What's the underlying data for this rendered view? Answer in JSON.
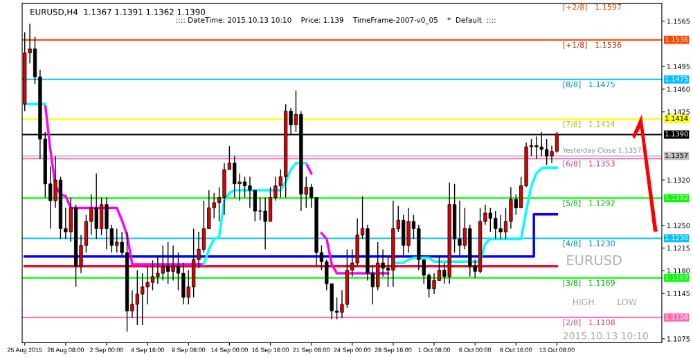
{
  "chart_data": {
    "type": "candlestick",
    "title": "EURUSD,H4  1.1367 1.1391 1.1362 1.1390",
    "subtitle": ":::: DateTime: 2015.10.13 10:10    Price: 1.139    TimeFrame-2007-v0_05    *  Default  ::::",
    "categories": [
      "25 Aug 2015",
      null,
      null,
      null,
      null,
      null,
      null,
      null,
      "28 Aug 08:00",
      null,
      null,
      null,
      null,
      null,
      null,
      null,
      "2 Sep 00:00",
      null,
      null,
      null,
      null,
      null,
      null,
      null,
      "4 Sep 16:00",
      null,
      null,
      null,
      null,
      null,
      null,
      null,
      "9 Sep 08:00",
      null,
      null,
      null,
      null,
      null,
      null,
      null,
      "14 Sep 00:00",
      null,
      null,
      null,
      null,
      null,
      null,
      null,
      "16 Sep 16:00",
      null,
      null,
      null,
      null,
      null,
      null,
      null,
      "21 Sep 08:00",
      null,
      null,
      null,
      null,
      null,
      null,
      null,
      "24 Sep 00:00",
      null,
      null,
      null,
      null,
      null,
      null,
      null,
      "28 Sep 16:00",
      null,
      null,
      null,
      null,
      null,
      null,
      null,
      "1 Oct 08:00",
      null,
      null,
      null,
      null,
      null,
      null,
      null,
      "6 Oct 00:00",
      null,
      null,
      null,
      null,
      null,
      null,
      null,
      "8 Oct 16:00",
      null,
      null,
      null,
      null,
      null,
      null,
      null,
      "13 Oct 08:00"
    ],
    "ohlc": [
      [
        1.1437,
        1.1548,
        1.1426,
        1.1516
      ],
      [
        1.1516,
        1.1561,
        1.15,
        1.1522
      ],
      [
        1.1522,
        1.1541,
        1.1468,
        1.1479
      ],
      [
        1.1479,
        1.149,
        1.1352,
        1.1383
      ],
      [
        1.1383,
        1.1394,
        1.1293,
        1.1314
      ],
      [
        1.1314,
        1.1341,
        1.1245,
        1.1288
      ],
      [
        1.1288,
        1.1357,
        1.1277,
        1.132
      ],
      [
        1.132,
        1.1325,
        1.1229,
        1.1245
      ],
      [
        1.1245,
        1.1277,
        1.1229,
        1.124
      ],
      [
        1.124,
        1.1293,
        1.1224,
        1.1277
      ],
      [
        1.1277,
        1.1282,
        1.1155,
        1.1187
      ],
      [
        1.1187,
        1.1235,
        1.1176,
        1.1219
      ],
      [
        1.1219,
        1.1266,
        1.1208,
        1.1256
      ],
      [
        1.1256,
        1.1298,
        1.1235,
        1.1277
      ],
      [
        1.1277,
        1.133,
        1.1229,
        1.1245
      ],
      [
        1.1245,
        1.1293,
        1.1235,
        1.1282
      ],
      [
        1.1282,
        1.1293,
        1.1213,
        1.1245
      ],
      [
        1.1245,
        1.1251,
        1.1208,
        1.1219
      ],
      [
        1.1219,
        1.1245,
        1.1208,
        1.1224
      ],
      [
        1.1224,
        1.124,
        1.1203,
        1.1208
      ],
      [
        1.1208,
        1.124,
        1.1086,
        1.1118
      ],
      [
        1.1118,
        1.115,
        1.1107,
        1.1128
      ],
      [
        1.1128,
        1.1181,
        1.1096,
        1.1144
      ],
      [
        1.1144,
        1.1176,
        1.1096,
        1.1155
      ],
      [
        1.1155,
        1.1187,
        1.1128,
        1.1162
      ],
      [
        1.1162,
        1.1196,
        1.115,
        1.1171
      ],
      [
        1.1171,
        1.1203,
        1.116,
        1.1176
      ],
      [
        1.1176,
        1.1219,
        1.1165,
        1.1187
      ],
      [
        1.1187,
        1.1224,
        1.116,
        1.1179
      ],
      [
        1.1179,
        1.1219,
        1.1165,
        1.1187
      ],
      [
        1.1187,
        1.1208,
        1.115,
        1.1176
      ],
      [
        1.1176,
        1.1192,
        1.1128,
        1.1139
      ],
      [
        1.1139,
        1.1181,
        1.1128,
        1.1155
      ],
      [
        1.1155,
        1.1245,
        1.1139,
        1.1197
      ],
      [
        1.1197,
        1.124,
        1.1184,
        1.1213
      ],
      [
        1.1213,
        1.1288,
        1.1208,
        1.1245
      ],
      [
        1.1245,
        1.1304,
        1.1245,
        1.1277
      ],
      [
        1.1277,
        1.13,
        1.1261,
        1.1285
      ],
      [
        1.1285,
        1.1309,
        1.1256,
        1.1293
      ],
      [
        1.1293,
        1.1346,
        1.1266,
        1.1336
      ],
      [
        1.1336,
        1.1372,
        1.1336,
        1.1346
      ],
      [
        1.1346,
        1.1357,
        1.1293,
        1.1314
      ],
      [
        1.1314,
        1.133,
        1.1288,
        1.1317
      ],
      [
        1.1317,
        1.1325,
        1.1293,
        1.1311
      ],
      [
        1.1311,
        1.1325,
        1.1277,
        1.1304
      ],
      [
        1.1304,
        1.1304,
        1.1256,
        1.1272
      ],
      [
        1.1272,
        1.1293,
        1.1258,
        1.1272
      ],
      [
        1.1272,
        1.1293,
        1.1213,
        1.1256
      ],
      [
        1.1256,
        1.1309,
        1.1256,
        1.1293
      ],
      [
        1.1293,
        1.1325,
        1.1288,
        1.1311
      ],
      [
        1.1311,
        1.1336,
        1.1293,
        1.1325
      ],
      [
        1.1325,
        1.1437,
        1.1293,
        1.1426
      ],
      [
        1.1426,
        1.1431,
        1.1389,
        1.1405
      ],
      [
        1.1405,
        1.1458,
        1.1394,
        1.1421
      ],
      [
        1.1421,
        1.1426,
        1.1272,
        1.1298
      ],
      [
        1.1298,
        1.1325,
        1.1277,
        1.1309
      ],
      [
        1.1309,
        1.1314,
        1.1277,
        1.1293
      ],
      [
        1.1293,
        1.1293,
        1.1187,
        1.1208
      ],
      [
        1.1208,
        1.1219,
        1.1181,
        1.1194
      ],
      [
        1.1194,
        1.1197,
        1.115,
        1.116
      ],
      [
        1.116,
        1.116,
        1.1105,
        1.1118
      ],
      [
        1.1118,
        1.1139,
        1.1105,
        1.1116
      ],
      [
        1.1116,
        1.115,
        1.1107,
        1.1128
      ],
      [
        1.1128,
        1.1213,
        1.1123,
        1.1181
      ],
      [
        1.1181,
        1.1213,
        1.1171,
        1.1192
      ],
      [
        1.1192,
        1.1261,
        1.1187,
        1.1235
      ],
      [
        1.1235,
        1.1295,
        1.1229,
        1.1245
      ],
      [
        1.1245,
        1.1251,
        1.1165,
        1.1176
      ],
      [
        1.1176,
        1.1187,
        1.1128,
        1.1155
      ],
      [
        1.1155,
        1.1224,
        1.115,
        1.1192
      ],
      [
        1.1192,
        1.1213,
        1.1171,
        1.1184
      ],
      [
        1.1184,
        1.1203,
        1.1155,
        1.1181
      ],
      [
        1.1181,
        1.1288,
        1.1155,
        1.1245
      ],
      [
        1.1245,
        1.128,
        1.124,
        1.1258
      ],
      [
        1.1258,
        1.1266,
        1.1203,
        1.1219
      ],
      [
        1.1219,
        1.1277,
        1.1208,
        1.1256
      ],
      [
        1.1256,
        1.1266,
        1.1229,
        1.1245
      ],
      [
        1.1245,
        1.1251,
        1.1181,
        1.1197
      ],
      [
        1.1197,
        1.1197,
        1.116,
        1.1173
      ],
      [
        1.1173,
        1.1176,
        1.1139,
        1.1152
      ],
      [
        1.1152,
        1.1176,
        1.1144,
        1.1165
      ],
      [
        1.1165,
        1.1203,
        1.1165,
        1.1181
      ],
      [
        1.1181,
        1.1192,
        1.116,
        1.1171
      ],
      [
        1.1171,
        1.1316,
        1.116,
        1.1282
      ],
      [
        1.1282,
        1.1314,
        1.1208,
        1.1229
      ],
      [
        1.1229,
        1.1288,
        1.1203,
        1.1219
      ],
      [
        1.1219,
        1.1277,
        1.1213,
        1.1245
      ],
      [
        1.1245,
        1.1251,
        1.1171,
        1.1187
      ],
      [
        1.1187,
        1.1197,
        1.1169,
        1.1179
      ],
      [
        1.1179,
        1.1277,
        1.1176,
        1.1256
      ],
      [
        1.1256,
        1.1282,
        1.1251,
        1.1269
      ],
      [
        1.1269,
        1.1277,
        1.124,
        1.1261
      ],
      [
        1.1261,
        1.1272,
        1.1229,
        1.1245
      ],
      [
        1.1245,
        1.1266,
        1.1229,
        1.124
      ],
      [
        1.124,
        1.1277,
        1.1229,
        1.1256
      ],
      [
        1.1256,
        1.1309,
        1.1245,
        1.129
      ],
      [
        1.129,
        1.1298,
        1.1266,
        1.1277
      ],
      [
        1.1277,
        1.1325,
        1.1277,
        1.1311
      ],
      [
        1.1311,
        1.1378,
        1.1309,
        1.1371
      ],
      [
        1.1371,
        1.1383,
        1.1357,
        1.1373
      ],
      [
        1.1373,
        1.1387,
        1.1352,
        1.1371
      ],
      [
        1.1371,
        1.1394,
        1.1357,
        1.1367
      ],
      [
        1.1367,
        1.1383,
        1.1343,
        1.1357
      ],
      [
        1.1357,
        1.1373,
        1.1346,
        1.1364
      ],
      [
        1.1364,
        1.1394,
        1.1362,
        1.1391
      ]
    ],
    "series": [
      {
        "type": "line",
        "color": "#00ffff",
        "values": [
          1.1437,
          1.1437,
          1.1437,
          1.1437,
          1.1437,
          null,
          null,
          null,
          null,
          null,
          null,
          null,
          null,
          null,
          null,
          null,
          null,
          null,
          null,
          null,
          null,
          null,
          null,
          null,
          null,
          null,
          null,
          null,
          null,
          null,
          null,
          null,
          null,
          null,
          null,
          1.119,
          1.1213,
          1.1229,
          1.1232,
          1.1288,
          1.13,
          1.1304,
          1.1304,
          1.1304,
          1.1304,
          1.1304,
          1.1304,
          1.1304,
          1.1304,
          1.1304,
          1.1304,
          1.1317,
          1.1336,
          1.1346,
          1.1346,
          1.1346,
          null,
          null,
          null,
          null,
          null,
          null,
          null,
          null,
          null,
          null,
          null,
          null,
          null,
          null,
          null,
          null,
          1.1192,
          1.1192,
          1.1192,
          1.1197,
          1.12,
          1.12,
          1.12,
          1.12,
          1.1194,
          1.1194,
          1.1194,
          1.1194,
          1.1194,
          1.1194,
          1.1194,
          1.1194,
          1.1194,
          1.1194,
          1.1222,
          1.1229,
          1.1229,
          1.1229,
          1.1229,
          1.1229,
          1.1229,
          1.1229,
          1.1272,
          1.1311,
          1.133,
          1.1338,
          1.1339,
          1.1339,
          1.1339
        ]
      },
      {
        "type": "line",
        "color": "#ff00ff",
        "values": [
          null,
          null,
          null,
          null,
          1.1437,
          1.1367,
          1.1311,
          1.1298,
          1.1295,
          1.1277,
          1.1277,
          1.1277,
          1.1277,
          1.1277,
          1.1277,
          1.1277,
          1.1277,
          1.1277,
          1.1277,
          1.1258,
          1.1235,
          1.119,
          1.119,
          1.119,
          1.119,
          1.119,
          1.119,
          1.119,
          1.119,
          1.119,
          1.119,
          1.119,
          1.119,
          1.119,
          1.119,
          1.119,
          null,
          null,
          null,
          null,
          null,
          null,
          null,
          null,
          null,
          null,
          null,
          null,
          null,
          null,
          null,
          null,
          null,
          null,
          null,
          1.1346,
          1.133,
          null,
          1.1238,
          1.1229,
          1.119,
          1.1176,
          1.1176,
          1.1176,
          1.1176,
          1.1176,
          1.1176,
          1.1176,
          1.1176,
          1.1176,
          1.1176,
          1.1176,
          null,
          null,
          null,
          null,
          null,
          null,
          null,
          null,
          null,
          null,
          null,
          null,
          null,
          null,
          null,
          null,
          null,
          null,
          null,
          null,
          null,
          null,
          null,
          null,
          null,
          null,
          null,
          null,
          null,
          null,
          null,
          null,
          null
        ]
      },
      {
        "type": "step",
        "color": "#0000ff",
        "values": [
          1.1202,
          1.1202,
          1.1202,
          1.1202,
          1.1202,
          1.1202,
          1.1202,
          1.1202,
          1.1202,
          1.1202,
          1.1202,
          1.1202,
          1.1202,
          1.1202,
          1.1202,
          1.1202,
          1.1202,
          1.1202,
          1.1202,
          1.1202,
          1.1202,
          1.1202,
          1.1202,
          1.1202,
          1.1202,
          1.1202,
          1.1202,
          1.1202,
          1.1202,
          1.1202,
          1.1202,
          1.1202,
          1.1202,
          1.1202,
          1.1202,
          1.1202,
          1.1202,
          1.1202,
          1.1202,
          1.1202,
          1.1202,
          1.1202,
          1.1202,
          1.1202,
          1.1202,
          1.1202,
          1.1202,
          1.1202,
          1.1202,
          1.1202,
          1.1202,
          1.1202,
          1.1202,
          1.1202,
          1.1202,
          1.1202,
          1.1202,
          1.1202,
          1.1202,
          1.1202,
          1.1202,
          1.1202,
          1.1202,
          1.1202,
          1.1202,
          1.1202,
          1.1202,
          1.1202,
          1.1202,
          1.1202,
          1.1202,
          1.1202,
          1.1202,
          1.1202,
          1.1202,
          1.1202,
          1.1202,
          1.1202,
          1.1202,
          1.1202,
          1.1202,
          1.1202,
          1.1202,
          1.1202,
          1.1202,
          1.1202,
          1.1202,
          1.1202,
          1.1202,
          1.1202,
          1.1202,
          1.1202,
          1.1202,
          1.1202,
          1.1202,
          1.1202,
          1.1202,
          1.1202,
          1.1202,
          1.1202,
          1.1267,
          1.1267,
          1.1267,
          1.1267,
          1.1267
        ]
      },
      {
        "type": "line",
        "color": "#dc143c",
        "values": [
          1.1187,
          1.1187,
          1.1187,
          1.1187,
          1.1187,
          1.1187,
          1.1187,
          1.1187,
          1.1187,
          1.1187,
          1.1187,
          1.1187,
          1.1187,
          1.1187,
          1.1187,
          1.1187,
          1.1187,
          1.1187,
          1.1187,
          1.1187,
          1.1187,
          1.1187,
          1.1187,
          1.1187,
          1.1187,
          1.1187,
          1.1187,
          1.1187,
          1.1187,
          1.1187,
          1.1187,
          1.1187,
          1.1187,
          1.1187,
          1.1187,
          1.1187,
          1.1187,
          1.1187,
          1.1187,
          1.1187,
          1.1187,
          1.1187,
          1.1187,
          1.1187,
          1.1187,
          1.1187,
          1.1187,
          1.1187,
          1.1187,
          1.1187,
          1.1187,
          1.1187,
          1.1187,
          1.1187,
          1.1187,
          1.1187,
          1.1187,
          1.1187,
          1.1187,
          1.1187,
          1.1187,
          1.1187,
          1.1187,
          1.1187,
          1.1187,
          1.1187,
          1.1187,
          1.1187,
          1.1187,
          1.1187,
          1.1187,
          1.1187,
          1.1187,
          1.1187,
          1.1187,
          1.1187,
          1.1187,
          1.1187,
          1.1187,
          1.1187,
          1.1187,
          1.1187,
          1.1187,
          1.1187,
          1.1187,
          1.1187,
          1.1187,
          1.1187,
          1.1187,
          1.1187,
          1.1187,
          1.1187,
          1.1187,
          1.1187,
          1.1187,
          1.1187,
          1.1187,
          1.1187,
          1.1187,
          1.1187,
          1.1187,
          1.1187,
          1.1187,
          1.1187,
          1.1187
        ]
      }
    ],
    "ylim": [
      1.1069,
      1.1592
    ],
    "yticks": [
      1.1565,
      1.1495,
      {
        "value": 1.146,
        "label": "1.1460"
      },
      1.1425,
      {
        "value": 1.132,
        "label": "1.1320"
      },
      {
        "value": 1.125,
        "label": "1.1250"
      },
      1.1215,
      {
        "value": 1.118,
        "label": "1.1180"
      },
      1.1145,
      1.1075
    ],
    "ref_lines": [
      {
        "axis": "y",
        "value": 1.1536,
        "label": "1.1536",
        "color": "#ff4500"
      },
      {
        "axis": "y",
        "value": 1.1475,
        "label": "1.1475",
        "color": "#00bfff"
      },
      {
        "axis": "y",
        "value": 1.1414,
        "label": "1.1414",
        "color": "#ffff00"
      },
      {
        "axis": "y",
        "value": 1.139,
        "label": "1.1390",
        "color": "#000000"
      },
      {
        "axis": "y",
        "value": 1.1357,
        "label": "1.1357",
        "color": "#c0c0c0"
      },
      {
        "axis": "y",
        "value": 1.1353,
        "color": "#ff69b4"
      },
      {
        "axis": "y",
        "value": 1.1292,
        "label": "1.1292",
        "color": "#00ff00"
      },
      {
        "axis": "y",
        "value": 1.123,
        "label": "1.1230",
        "color": "#00bfff"
      },
      {
        "axis": "y",
        "value": 1.1169,
        "label": "1.1169",
        "color": "#00ff00"
      },
      {
        "axis": "y",
        "value": 1.1108,
        "label": "1.1108",
        "color": "#ff69b4"
      }
    ],
    "annotations": [
      {
        "text": "[+1/8]   1.1536",
        "y": 1.1536
      },
      {
        "text": "[8/8]   1.1475",
        "y": 1.1475
      },
      {
        "text": "[7/8]   1.1414",
        "y": 1.1414
      },
      {
        "text": "Yesterday Close 1.1357",
        "y": 1.1357
      },
      {
        "text": "[6/8]   1.1353",
        "y": 1.1353
      },
      {
        "text": "[5/8]   1.1292",
        "y": 1.1292
      },
      {
        "text": "[4/8]   1.1230",
        "y": 1.123
      },
      {
        "text": "[3/8]   1.1169",
        "y": 1.1169
      },
      {
        "text": "[2/8]   1.1108",
        "y": 1.1108
      },
      "[+2/8]   1.1597",
      "EURUSD",
      "HIGH",
      "LOW",
      "2015.10.13 10:10"
    ],
    "grid": false
  }
}
